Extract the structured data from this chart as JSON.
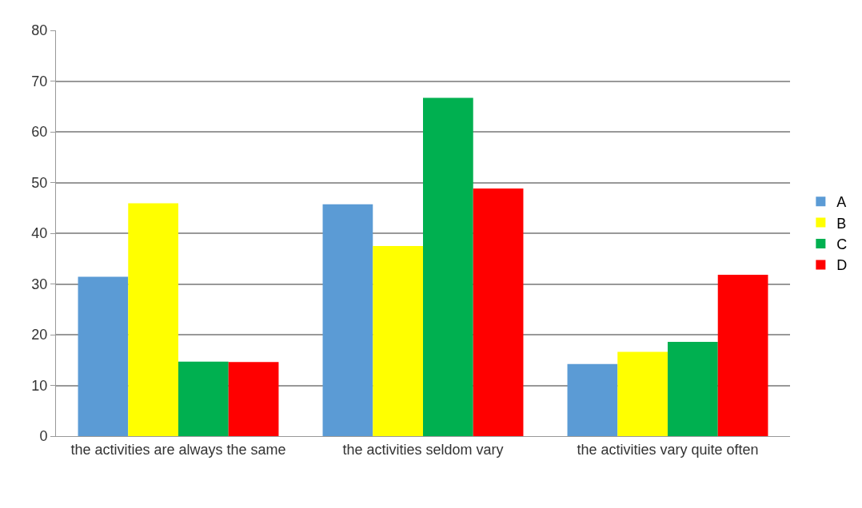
{
  "chart_data": {
    "type": "bar",
    "categories": [
      "the activities are always the same",
      "the activities seldom vary",
      "the activities vary quite often"
    ],
    "series": [
      {
        "name": "A",
        "color": "#5b9bd5",
        "values": [
          31.4,
          45.7,
          14.2
        ]
      },
      {
        "name": "B",
        "color": "#ffff00",
        "values": [
          45.9,
          37.5,
          16.6
        ]
      },
      {
        "name": "C",
        "color": "#00b050",
        "values": [
          14.7,
          66.7,
          18.6
        ]
      },
      {
        "name": "D",
        "color": "#ff0000",
        "values": [
          14.6,
          48.8,
          31.8
        ]
      }
    ],
    "ylim": [
      0,
      80
    ],
    "yticks": [
      0,
      10,
      20,
      30,
      40,
      50,
      60,
      70,
      80
    ],
    "grid": "y",
    "legend": "right"
  }
}
